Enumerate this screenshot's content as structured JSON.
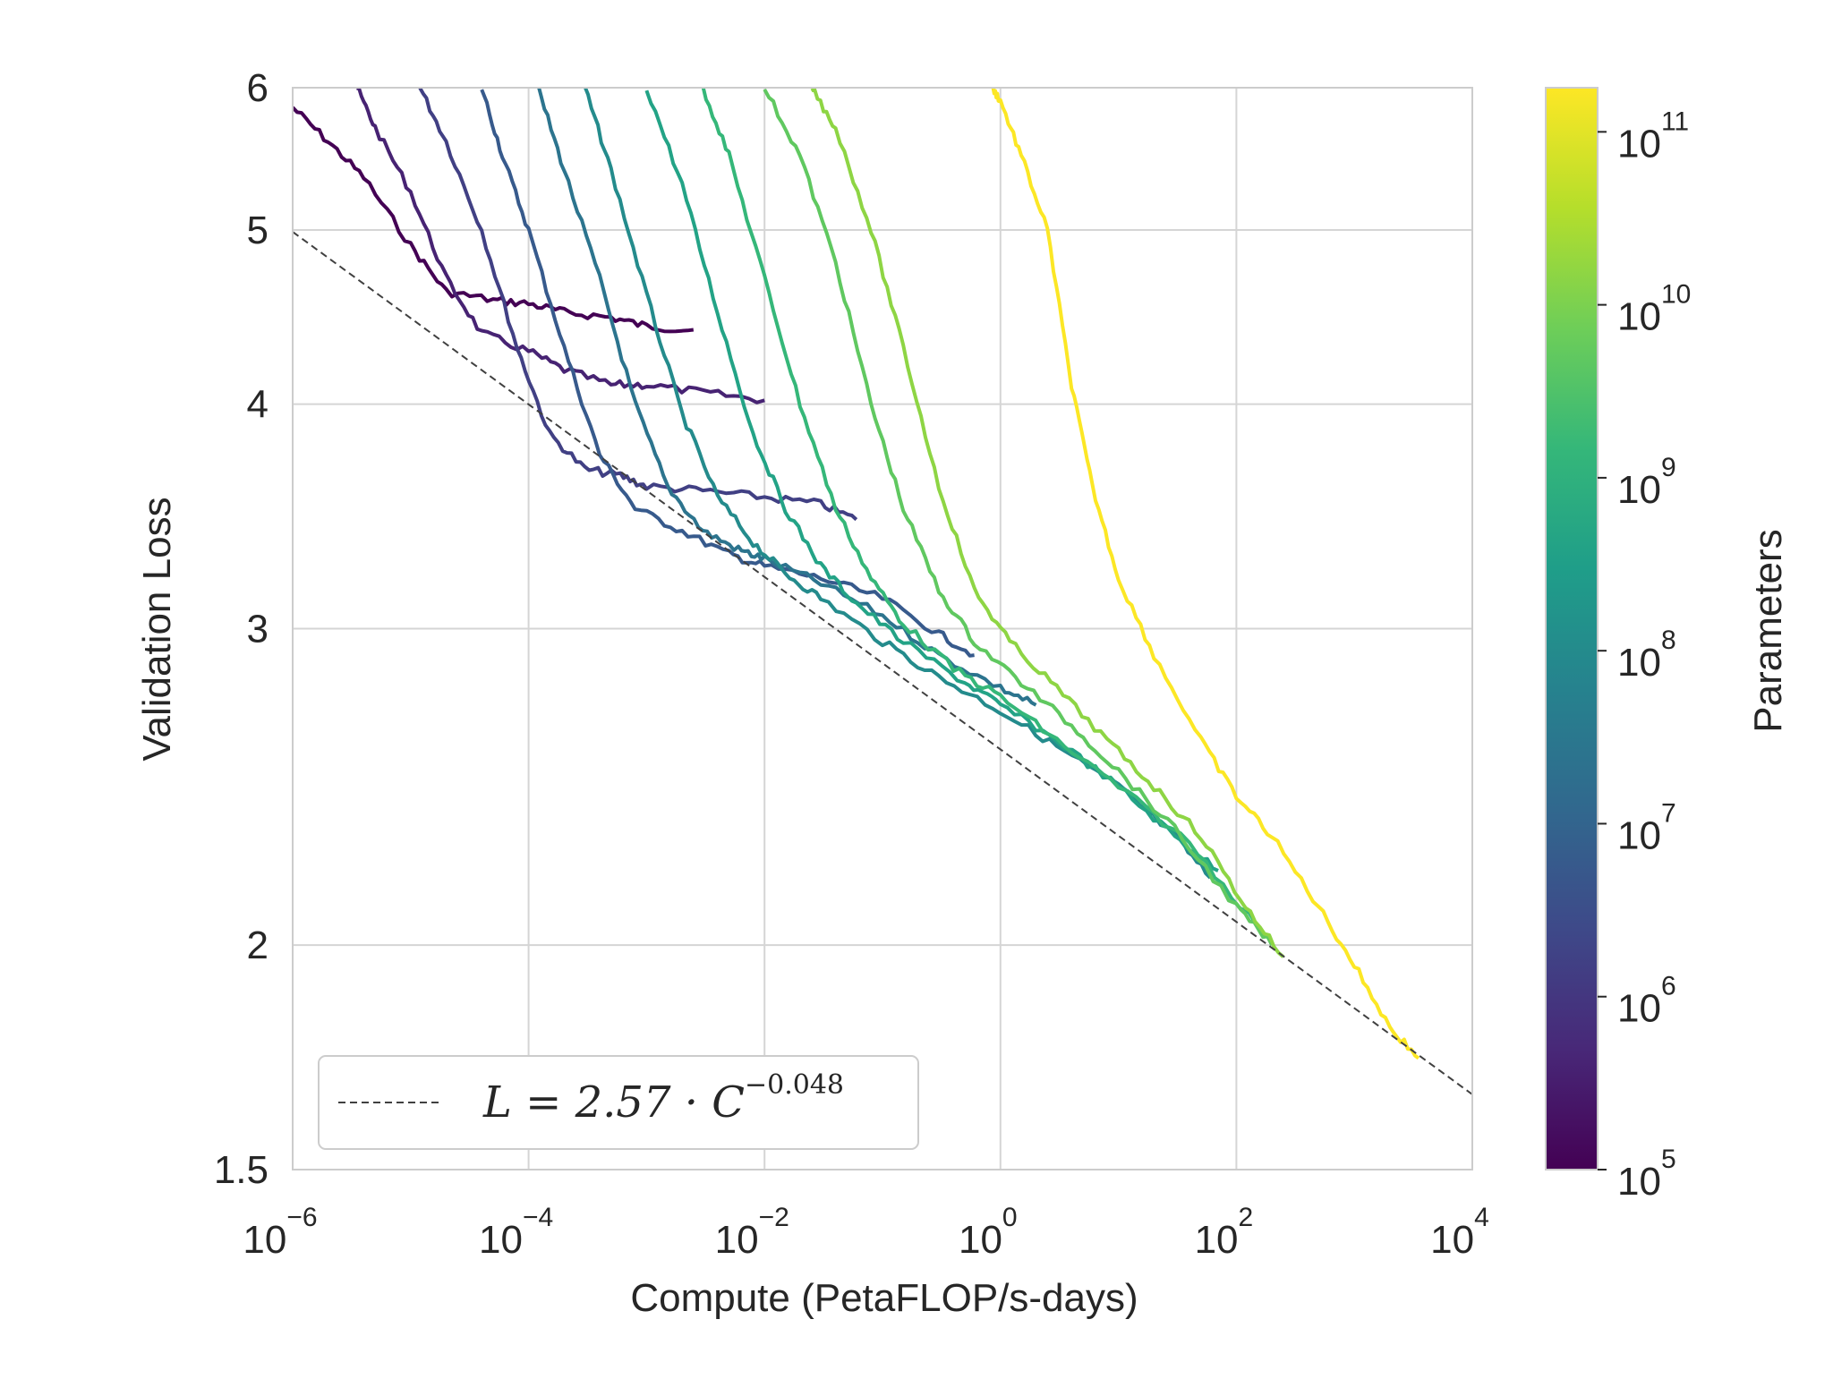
{
  "chart_data": {
    "type": "line",
    "xlabel": "Compute (PetaFLOP/s-days)",
    "ylabel": "Validation Loss",
    "x_scale": "log",
    "y_scale": "log",
    "xlim": [
      1e-06,
      10000.0
    ],
    "ylim": [
      1.5,
      6
    ],
    "x_ticks": [
      {
        "value": 1e-06,
        "base": "10",
        "exp": "−6"
      },
      {
        "value": 0.0001,
        "base": "10",
        "exp": "−4"
      },
      {
        "value": 0.01,
        "base": "10",
        "exp": "−2"
      },
      {
        "value": 1,
        "base": "10",
        "exp": "0"
      },
      {
        "value": 100,
        "base": "10",
        "exp": "2"
      },
      {
        "value": 10000,
        "base": "10",
        "exp": "4"
      }
    ],
    "y_ticks": [
      {
        "value": 1.5,
        "label": "1.5"
      },
      {
        "value": 2,
        "label": "2"
      },
      {
        "value": 3,
        "label": "3"
      },
      {
        "value": 4,
        "label": "4"
      },
      {
        "value": 5,
        "label": "5"
      },
      {
        "value": 6,
        "label": "6"
      }
    ],
    "grid": true,
    "legend_position": "lower-left",
    "trend": {
      "label_main": "L = 2.57 · C",
      "label_exp": "−0.048",
      "coefficient": 2.57,
      "exponent": -0.048,
      "color": "#404040",
      "style": "dashed"
    },
    "colorbar": {
      "label": "Parameters",
      "scale": "log",
      "range": [
        100000.0,
        180000000000.0
      ],
      "colormap": "viridis",
      "ticks": [
        {
          "value": 100000.0,
          "base": "10",
          "exp": "5"
        },
        {
          "value": 1000000.0,
          "base": "10",
          "exp": "6"
        },
        {
          "value": 10000000.0,
          "base": "10",
          "exp": "7"
        },
        {
          "value": 100000000.0,
          "base": "10",
          "exp": "8"
        },
        {
          "value": 1000000000.0,
          "base": "10",
          "exp": "9"
        },
        {
          "value": 10000000000.0,
          "base": "10",
          "exp": "10"
        },
        {
          "value": 100000000000.0,
          "base": "10",
          "exp": "11"
        }
      ]
    },
    "series": [
      {
        "params": 100000.0,
        "points": [
          [
            1e-06,
            5.85
          ],
          [
            2e-06,
            5.6
          ],
          [
            4e-06,
            5.35
          ],
          [
            1e-05,
            4.9
          ],
          [
            2e-05,
            4.62
          ],
          [
            5e-05,
            4.57
          ],
          [
            0.0001,
            4.55
          ],
          [
            0.0002,
            4.5
          ],
          [
            0.0005,
            4.47
          ],
          [
            0.001,
            4.42
          ],
          [
            0.0025,
            4.4
          ]
        ]
      },
      {
        "params": 400000.0,
        "points": [
          [
            3.5e-06,
            6.0
          ],
          [
            5e-06,
            5.7
          ],
          [
            1e-05,
            5.25
          ],
          [
            2e-05,
            4.7
          ],
          [
            4e-05,
            4.38
          ],
          [
            0.0001,
            4.28
          ],
          [
            0.0002,
            4.18
          ],
          [
            0.0005,
            4.1
          ],
          [
            0.001,
            4.1
          ],
          [
            0.003,
            4.06
          ],
          [
            0.01,
            4.02
          ]
        ]
      },
      {
        "params": 1600000.0,
        "points": [
          [
            1.2e-05,
            6.0
          ],
          [
            2e-05,
            5.6
          ],
          [
            4e-05,
            5.0
          ],
          [
            8e-05,
            4.3
          ],
          [
            0.00015,
            3.85
          ],
          [
            0.0003,
            3.68
          ],
          [
            0.0006,
            3.65
          ],
          [
            0.001,
            3.6
          ],
          [
            0.003,
            3.58
          ],
          [
            0.01,
            3.55
          ],
          [
            0.03,
            3.52
          ],
          [
            0.06,
            3.45
          ]
        ]
      },
      {
        "params": 6000000.0,
        "points": [
          [
            4e-05,
            6.0
          ],
          [
            6e-05,
            5.5
          ],
          [
            0.0001,
            5.0
          ],
          [
            0.0002,
            4.3
          ],
          [
            0.0004,
            3.75
          ],
          [
            0.0008,
            3.5
          ],
          [
            0.002,
            3.4
          ],
          [
            0.005,
            3.3
          ],
          [
            0.01,
            3.25
          ],
          [
            0.03,
            3.2
          ],
          [
            0.1,
            3.12
          ],
          [
            0.3,
            2.98
          ],
          [
            0.6,
            2.9
          ]
        ]
      },
      {
        "params": 25000000.0,
        "points": [
          [
            0.00012,
            6.0
          ],
          [
            0.0002,
            5.4
          ],
          [
            0.0004,
            4.7
          ],
          [
            0.0008,
            4.0
          ],
          [
            0.0015,
            3.6
          ],
          [
            0.003,
            3.4
          ],
          [
            0.006,
            3.32
          ],
          [
            0.01,
            3.28
          ],
          [
            0.03,
            3.18
          ],
          [
            0.1,
            3.05
          ],
          [
            0.3,
            2.9
          ],
          [
            1,
            2.78
          ],
          [
            2,
            2.72
          ]
        ]
      },
      {
        "params": 100000000.0,
        "points": [
          [
            0.0003,
            6.0
          ],
          [
            0.0005,
            5.4
          ],
          [
            0.001,
            4.6
          ],
          [
            0.002,
            3.95
          ],
          [
            0.004,
            3.55
          ],
          [
            0.008,
            3.35
          ],
          [
            0.015,
            3.22
          ],
          [
            0.03,
            3.12
          ],
          [
            0.1,
            2.95
          ],
          [
            0.3,
            2.82
          ],
          [
            1,
            2.7
          ],
          [
            3,
            2.58
          ],
          [
            10,
            2.45
          ],
          [
            30,
            2.3
          ],
          [
            60,
            2.18
          ]
        ]
      },
      {
        "params": 400000000.0,
        "points": [
          [
            0.001,
            6.0
          ],
          [
            0.002,
            5.3
          ],
          [
            0.004,
            4.5
          ],
          [
            0.008,
            3.85
          ],
          [
            0.015,
            3.5
          ],
          [
            0.03,
            3.25
          ],
          [
            0.06,
            3.1
          ],
          [
            0.15,
            2.95
          ],
          [
            0.5,
            2.8
          ],
          [
            1,
            2.72
          ],
          [
            3,
            2.6
          ],
          [
            10,
            2.45
          ],
          [
            30,
            2.3
          ],
          [
            70,
            2.2
          ]
        ]
      },
      {
        "params": 1500000000.0,
        "points": [
          [
            0.003,
            6.0
          ],
          [
            0.005,
            5.5
          ],
          [
            0.01,
            4.7
          ],
          [
            0.02,
            4.0
          ],
          [
            0.04,
            3.5
          ],
          [
            0.08,
            3.2
          ],
          [
            0.15,
            3.02
          ],
          [
            0.4,
            2.85
          ],
          [
            1,
            2.75
          ],
          [
            3,
            2.6
          ],
          [
            10,
            2.45
          ],
          [
            40,
            2.28
          ],
          [
            150,
            2.05
          ]
        ]
      },
      {
        "params": 5000000000.0,
        "points": [
          [
            0.01,
            6.0
          ],
          [
            0.02,
            5.5
          ],
          [
            0.04,
            4.8
          ],
          [
            0.08,
            4.0
          ],
          [
            0.15,
            3.5
          ],
          [
            0.3,
            3.15
          ],
          [
            0.6,
            2.95
          ],
          [
            1.5,
            2.8
          ],
          [
            4,
            2.65
          ],
          [
            10,
            2.5
          ],
          [
            30,
            2.32
          ],
          [
            100,
            2.1
          ],
          [
            200,
            2.0
          ]
        ]
      },
      {
        "params": 15000000000.0,
        "points": [
          [
            0.025,
            6.0
          ],
          [
            0.04,
            5.7
          ],
          [
            0.08,
            5.0
          ],
          [
            0.15,
            4.3
          ],
          [
            0.3,
            3.6
          ],
          [
            0.6,
            3.15
          ],
          [
            1.2,
            2.95
          ],
          [
            3,
            2.78
          ],
          [
            8,
            2.6
          ],
          [
            20,
            2.45
          ],
          [
            50,
            2.3
          ],
          [
            120,
            2.1
          ],
          [
            250,
            1.97
          ]
        ]
      },
      {
        "params": 175000000000.0,
        "points": [
          [
            0.85,
            6.0
          ],
          [
            1,
            5.9
          ],
          [
            1.5,
            5.5
          ],
          [
            2.5,
            5.0
          ],
          [
            4,
            4.1
          ],
          [
            6,
            3.6
          ],
          [
            10,
            3.2
          ],
          [
            20,
            2.9
          ],
          [
            50,
            2.6
          ],
          [
            100,
            2.42
          ],
          [
            200,
            2.3
          ],
          [
            500,
            2.1
          ],
          [
            1000,
            1.95
          ],
          [
            2000,
            1.8
          ],
          [
            3500,
            1.73
          ]
        ]
      }
    ]
  }
}
